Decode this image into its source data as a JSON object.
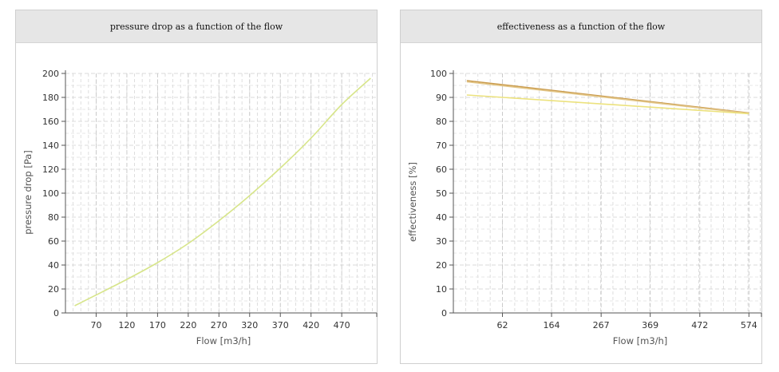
{
  "chart_data": [
    {
      "type": "line",
      "title": "pressure drop as a function of the flow",
      "xlabel": "Flow [m3/h]",
      "ylabel": "pressure drop [Pa]",
      "xlim": [
        20,
        527
      ],
      "ylim": [
        0,
        200
      ],
      "x_ticks": [
        70,
        120,
        170,
        220,
        270,
        320,
        370,
        420,
        470
      ],
      "y_ticks": [
        0,
        20,
        40,
        60,
        80,
        100,
        120,
        140,
        160,
        180,
        200
      ],
      "grid": true,
      "series": [
        {
          "color": "#d7e58a",
          "points": [
            [
              35,
              6
            ],
            [
              70,
              15
            ],
            [
              120,
              28
            ],
            [
              170,
              42
            ],
            [
              220,
              58
            ],
            [
              270,
              77
            ],
            [
              320,
              98
            ],
            [
              370,
              121
            ],
            [
              420,
              146
            ],
            [
              470,
              174
            ],
            [
              517,
              196
            ]
          ]
        }
      ]
    },
    {
      "type": "line",
      "title": "effectiveness as a function of the flow",
      "xlabel": "Flow [m3/h]",
      "ylabel": "effectiveness [%]",
      "xlim": [
        -40,
        600
      ],
      "ylim": [
        0,
        100
      ],
      "x_ticks": [
        62,
        164,
        267,
        369,
        472,
        574
      ],
      "y_ticks": [
        0,
        10,
        20,
        30,
        40,
        50,
        60,
        70,
        80,
        90,
        100
      ],
      "grid": true,
      "series": [
        {
          "color": "#c99a4b",
          "points": [
            [
              -12,
              97
            ],
            [
              574,
              83.5
            ]
          ]
        },
        {
          "color": "#e3c78a",
          "points": [
            [
              -12,
              96.5
            ],
            [
              574,
              83.3
            ]
          ]
        },
        {
          "color": "#ece27d",
          "points": [
            [
              -12,
              91
            ],
            [
              574,
              83.2
            ]
          ]
        }
      ]
    }
  ]
}
